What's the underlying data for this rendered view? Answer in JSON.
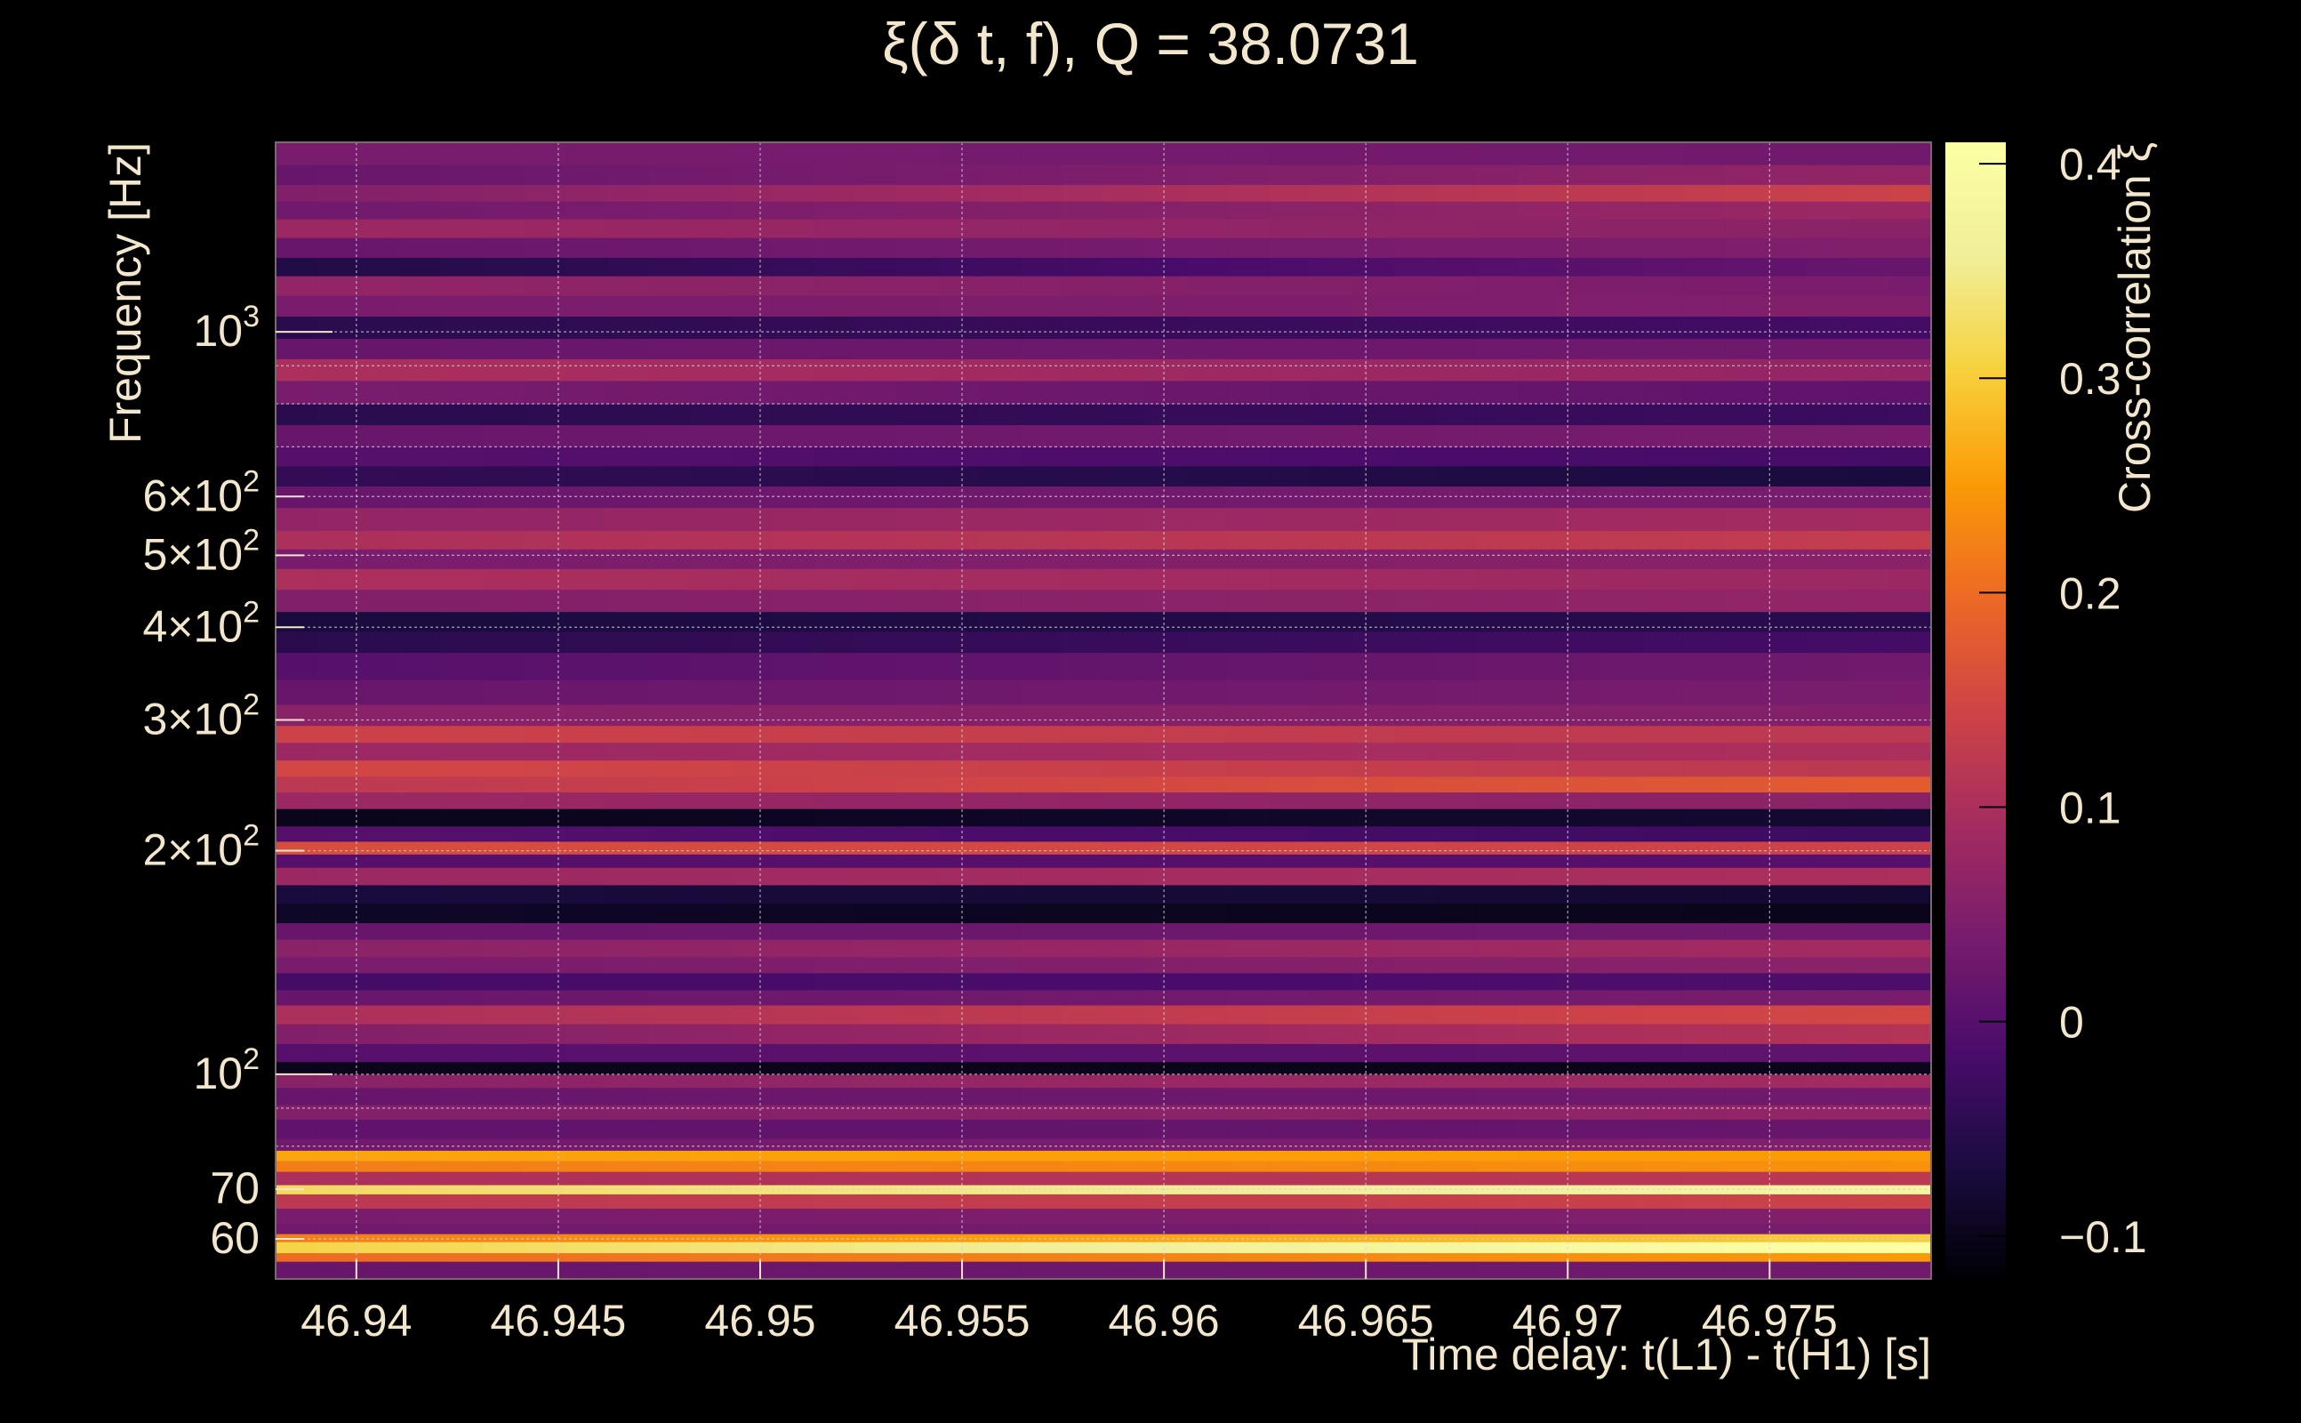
{
  "chart_data": {
    "type": "heatmap",
    "title": "ξ(δ t, f), Q = 38.0731",
    "xlabel": "Time delay: t(L1) - t(H1) [s]",
    "ylabel": "Frequency [Hz]",
    "colorbar_label": "Cross-correlation ξ",
    "colormap": "inferno",
    "xlim": [
      46.938,
      46.979
    ],
    "ylim": [
      53,
      1800
    ],
    "y_scale": "log",
    "grid": true,
    "x_ticks": [
      {
        "value": 46.94,
        "label": "46.94"
      },
      {
        "value": 46.945,
        "label": "46.945"
      },
      {
        "value": 46.95,
        "label": "46.95"
      },
      {
        "value": 46.955,
        "label": "46.955"
      },
      {
        "value": 46.96,
        "label": "46.96"
      },
      {
        "value": 46.965,
        "label": "46.965"
      },
      {
        "value": 46.97,
        "label": "46.97"
      },
      {
        "value": 46.975,
        "label": "46.975"
      }
    ],
    "y_major_ticks": [
      {
        "value": 100,
        "mant": "10",
        "exp": "2"
      },
      {
        "value": 1000,
        "mant": "10",
        "exp": "3"
      }
    ],
    "y_minor_ticks": [
      {
        "value": 60,
        "mant": "60",
        "exp": ""
      },
      {
        "value": 70,
        "mant": "70",
        "exp": ""
      },
      {
        "value": 200,
        "mant": "2×10",
        "exp": "2"
      },
      {
        "value": 300,
        "mant": "3×10",
        "exp": "2"
      },
      {
        "value": 400,
        "mant": "4×10",
        "exp": "2"
      },
      {
        "value": 500,
        "mant": "5×10",
        "exp": "2"
      },
      {
        "value": 600,
        "mant": "6×10",
        "exp": "2"
      }
    ],
    "y_grid_lines": [
      60,
      70,
      80,
      90,
      100,
      200,
      300,
      400,
      500,
      600,
      700,
      800,
      900,
      1000
    ],
    "colorbar_range": [
      -0.12,
      0.41
    ],
    "colorbar_ticks": [
      {
        "value": -0.1,
        "label": "−0.1"
      },
      {
        "value": 0,
        "label": "0"
      },
      {
        "value": 0.1,
        "label": "0.1"
      },
      {
        "value": 0.2,
        "label": "0.2"
      },
      {
        "value": 0.3,
        "label": "0.3"
      },
      {
        "value": 0.4,
        "label": "0.4"
      }
    ],
    "columns": 40,
    "bands": [
      {
        "f_low": 53,
        "f_high": 56,
        "start": 0.02,
        "end": 0.03
      },
      {
        "f_low": 56,
        "f_high": 57.5,
        "start": 0.2,
        "end": 0.25
      },
      {
        "f_low": 57.5,
        "f_high": 59.5,
        "start": 0.31,
        "end": 0.41
      },
      {
        "f_low": 59.5,
        "f_high": 61,
        "start": 0.22,
        "end": 0.3
      },
      {
        "f_low": 61,
        "f_high": 63,
        "start": 0.03,
        "end": 0.04
      },
      {
        "f_low": 63,
        "f_high": 66,
        "start": 0.04,
        "end": 0.05
      },
      {
        "f_low": 66,
        "f_high": 69,
        "start": 0.12,
        "end": 0.14
      },
      {
        "f_low": 69,
        "f_high": 71,
        "start": 0.32,
        "end": 0.38
      },
      {
        "f_low": 71,
        "f_high": 74,
        "start": 0.1,
        "end": 0.12
      },
      {
        "f_low": 74,
        "f_high": 76.5,
        "start": 0.22,
        "end": 0.24
      },
      {
        "f_low": 76.5,
        "f_high": 79,
        "start": 0.26,
        "end": 0.25
      },
      {
        "f_low": 79,
        "f_high": 82,
        "start": 0.03,
        "end": 0.05
      },
      {
        "f_low": 82,
        "f_high": 87,
        "start": 0.01,
        "end": 0.02
      },
      {
        "f_low": 87,
        "f_high": 91,
        "start": 0.05,
        "end": 0.07
      },
      {
        "f_low": 91,
        "f_high": 96,
        "start": 0.02,
        "end": 0.03
      },
      {
        "f_low": 96,
        "f_high": 100,
        "start": 0.06,
        "end": 0.09
      },
      {
        "f_low": 100,
        "f_high": 104,
        "start": -0.1,
        "end": -0.1
      },
      {
        "f_low": 104,
        "f_high": 110,
        "start": 0.0,
        "end": 0.01
      },
      {
        "f_low": 110,
        "f_high": 117,
        "start": 0.05,
        "end": 0.11
      },
      {
        "f_low": 117,
        "f_high": 124,
        "start": 0.1,
        "end": 0.15
      },
      {
        "f_low": 124,
        "f_high": 130,
        "start": 0.02,
        "end": 0.04
      },
      {
        "f_low": 130,
        "f_high": 137,
        "start": -0.02,
        "end": -0.01
      },
      {
        "f_low": 137,
        "f_high": 144,
        "start": 0.04,
        "end": 0.06
      },
      {
        "f_low": 144,
        "f_high": 152,
        "start": 0.06,
        "end": 0.09
      },
      {
        "f_low": 152,
        "f_high": 160,
        "start": 0.02,
        "end": 0.03
      },
      {
        "f_low": 160,
        "f_high": 170,
        "start": -0.09,
        "end": -0.1
      },
      {
        "f_low": 170,
        "f_high": 180,
        "start": -0.07,
        "end": -0.08
      },
      {
        "f_low": 180,
        "f_high": 190,
        "start": 0.08,
        "end": 0.1
      },
      {
        "f_low": 190,
        "f_high": 198,
        "start": 0.0,
        "end": 0.0
      },
      {
        "f_low": 198,
        "f_high": 206,
        "start": 0.16,
        "end": 0.14
      },
      {
        "f_low": 206,
        "f_high": 216,
        "start": 0.0,
        "end": -0.03
      },
      {
        "f_low": 216,
        "f_high": 228,
        "start": -0.1,
        "end": -0.08
      },
      {
        "f_low": 228,
        "f_high": 240,
        "start": 0.08,
        "end": 0.06
      },
      {
        "f_low": 240,
        "f_high": 252,
        "start": 0.12,
        "end": 0.18
      },
      {
        "f_low": 252,
        "f_high": 265,
        "start": 0.15,
        "end": 0.12
      },
      {
        "f_low": 265,
        "f_high": 280,
        "start": 0.08,
        "end": 0.1
      },
      {
        "f_low": 280,
        "f_high": 295,
        "start": 0.14,
        "end": 0.12
      },
      {
        "f_low": 295,
        "f_high": 315,
        "start": 0.06,
        "end": 0.05
      },
      {
        "f_low": 315,
        "f_high": 340,
        "start": 0.02,
        "end": 0.04
      },
      {
        "f_low": 340,
        "f_high": 370,
        "start": 0.0,
        "end": 0.03
      },
      {
        "f_low": 370,
        "f_high": 395,
        "start": -0.05,
        "end": -0.02
      },
      {
        "f_low": 395,
        "f_high": 420,
        "start": -0.07,
        "end": -0.05
      },
      {
        "f_low": 420,
        "f_high": 450,
        "start": 0.05,
        "end": 0.07
      },
      {
        "f_low": 450,
        "f_high": 480,
        "start": 0.1,
        "end": 0.08
      },
      {
        "f_low": 480,
        "f_high": 510,
        "start": 0.04,
        "end": 0.06
      },
      {
        "f_low": 510,
        "f_high": 540,
        "start": 0.1,
        "end": 0.13
      },
      {
        "f_low": 540,
        "f_high": 580,
        "start": 0.07,
        "end": 0.09
      },
      {
        "f_low": 580,
        "f_high": 620,
        "start": 0.02,
        "end": 0.04
      },
      {
        "f_low": 620,
        "f_high": 660,
        "start": -0.04,
        "end": -0.07
      },
      {
        "f_low": 660,
        "f_high": 700,
        "start": 0.0,
        "end": -0.02
      },
      {
        "f_low": 700,
        "f_high": 750,
        "start": 0.02,
        "end": 0.04
      },
      {
        "f_low": 750,
        "f_high": 800,
        "start": -0.05,
        "end": -0.03
      },
      {
        "f_low": 800,
        "f_high": 860,
        "start": 0.04,
        "end": 0.01
      },
      {
        "f_low": 860,
        "f_high": 920,
        "start": 0.1,
        "end": 0.07
      },
      {
        "f_low": 920,
        "f_high": 980,
        "start": 0.02,
        "end": 0.03
      },
      {
        "f_low": 980,
        "f_high": 1050,
        "start": -0.05,
        "end": -0.02
      },
      {
        "f_low": 1050,
        "f_high": 1120,
        "start": 0.04,
        "end": 0.05
      },
      {
        "f_low": 1120,
        "f_high": 1190,
        "start": 0.07,
        "end": 0.04
      },
      {
        "f_low": 1190,
        "f_high": 1260,
        "start": -0.06,
        "end": 0.02
      },
      {
        "f_low": 1260,
        "f_high": 1340,
        "start": 0.02,
        "end": 0.05
      },
      {
        "f_low": 1340,
        "f_high": 1420,
        "start": 0.08,
        "end": 0.06
      },
      {
        "f_low": 1420,
        "f_high": 1500,
        "start": 0.03,
        "end": 0.08
      },
      {
        "f_low": 1500,
        "f_high": 1580,
        "start": 0.05,
        "end": 0.14
      },
      {
        "f_low": 1580,
        "f_high": 1680,
        "start": 0.02,
        "end": 0.07
      },
      {
        "f_low": 1680,
        "f_high": 1800,
        "start": 0.04,
        "end": 0.03
      }
    ]
  }
}
